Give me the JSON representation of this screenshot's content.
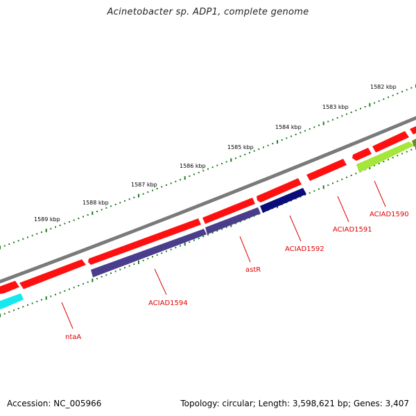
{
  "title": "Acinetobacter sp. ADP1, complete genome",
  "footer": {
    "accession": "Accession: NC_005966",
    "summary": "Topology: circular; Length: 3,598,621 bp; Genes: 3,407"
  },
  "ruler_ticks": [
    "1582 kbp",
    "1583 kbp",
    "1584 kbp",
    "1585 kbp",
    "1586 kbp",
    "1587 kbp",
    "1588 kbp",
    "1589 kbp"
  ],
  "gene_labels": [
    "ACIAD1590",
    "ACIAD1591",
    "ACIAD1592",
    "astR",
    "ACIAD1594",
    "ntaA"
  ],
  "colors": {
    "backbone": "#7a7a7a",
    "forward_gene": "#ff1010",
    "reverse_gene_purple": "#4a3e8c",
    "reverse_gene_navy": "#0a0a7a",
    "reverse_gene_lime": "#a6e63a",
    "reverse_gene_olive": "#6b8e23",
    "reverse_gene_cyan": "#14e8f0",
    "tick_dots": "#1a7a1a",
    "label_text": "#e00000"
  }
}
